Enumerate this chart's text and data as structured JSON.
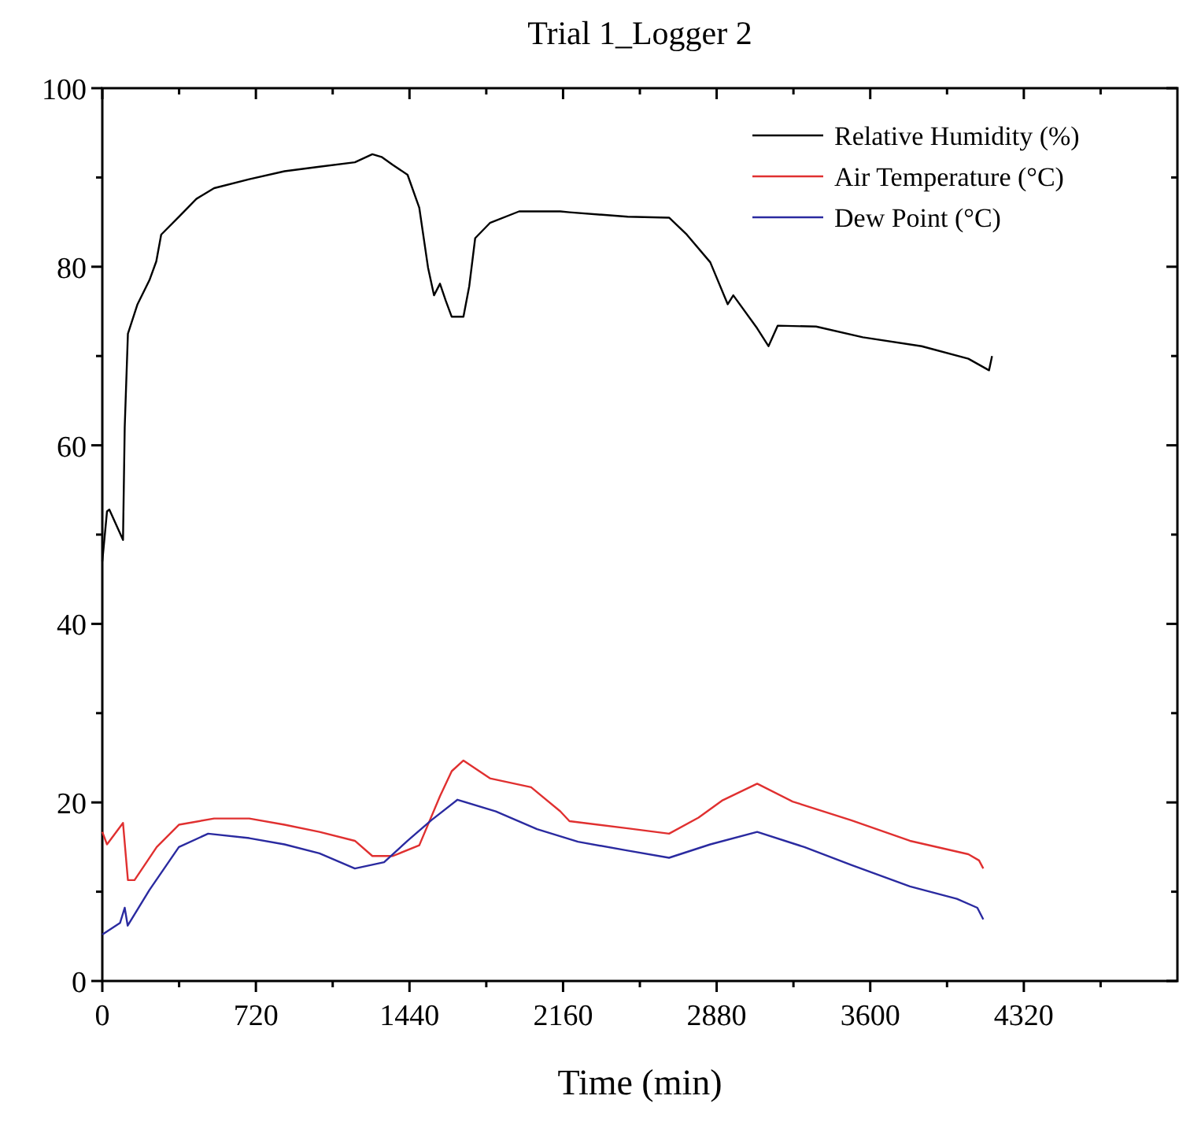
{
  "chart_data": {
    "type": "line",
    "title": "Trial 1_Logger 2",
    "xlabel": "Time (min)",
    "xlim": [
      0,
      5040
    ],
    "ylim": [
      0,
      100
    ],
    "xticks": [
      0,
      {
        "value": 360,
        "label": null
      },
      720,
      {
        "value": 1080,
        "label": null
      },
      1440,
      {
        "value": 1800,
        "label": null
      },
      2160,
      {
        "value": 2520,
        "label": null
      },
      2880,
      {
        "value": 3240,
        "label": null
      },
      3600,
      {
        "value": 3960,
        "label": null
      },
      4320,
      {
        "value": 4680,
        "label": null
      }
    ],
    "yticks": [
      0,
      {
        "value": 10,
        "label": null
      },
      20,
      {
        "value": 30,
        "label": null
      },
      40,
      {
        "value": 50,
        "label": null
      },
      60,
      {
        "value": 70,
        "label": null
      },
      80,
      {
        "value": 90,
        "label": null
      },
      100
    ],
    "grid": false,
    "legend": "top right",
    "marker": "none",
    "line_style": "solid",
    "series": [
      {
        "name": "Relative Humidity (%)",
        "color": "#000000",
        "x": [
          0,
          22,
          33,
          97,
          105,
          120,
          165,
          221,
          253,
          276,
          359,
          441,
          524,
          689,
          854,
          1018,
          1184,
          1266,
          1309,
          1362,
          1431,
          1486,
          1527,
          1555,
          1583,
          1610,
          1638,
          1693,
          1720,
          1748,
          1817,
          1954,
          2147,
          2190,
          2463,
          2657,
          2740,
          2850,
          2932,
          2958,
          3070,
          3123,
          3166,
          3346,
          3565,
          3841,
          4060,
          4157,
          4171
        ],
        "values": [
          47,
          52.6,
          52.8,
          49.4,
          62,
          72.5,
          75.8,
          78.5,
          80.6,
          83.6,
          85.6,
          87.6,
          88.8,
          89.8,
          90.7,
          91.2,
          91.7,
          92.6,
          92.3,
          91.4,
          90.3,
          86.6,
          79.9,
          76.8,
          78.1,
          76.2,
          74.4,
          74.4,
          77.8,
          83.2,
          84.9,
          86.2,
          86.2,
          86.1,
          85.6,
          85.5,
          83.6,
          80.5,
          75.8,
          76.8,
          73.1,
          71.1,
          73.4,
          73.3,
          72.1,
          71.1,
          69.7,
          68.4,
          70
        ]
      },
      {
        "name": "Air Temperature (°C)",
        "color": "#e03030",
        "x": [
          0,
          22,
          97,
          120,
          151,
          255,
          359,
          524,
          689,
          854,
          1018,
          1184,
          1266,
          1362,
          1486,
          1583,
          1638,
          1693,
          1817,
          2010,
          2147,
          2190,
          2463,
          2657,
          2795,
          2905,
          3070,
          3236,
          3511,
          3786,
          4060,
          4110,
          4130
        ],
        "values": [
          16.7,
          15.3,
          17.7,
          11.3,
          11.3,
          15,
          17.5,
          18.2,
          18.2,
          17.5,
          16.7,
          15.7,
          14,
          14,
          15.2,
          20.7,
          23.5,
          24.7,
          22.7,
          21.7,
          19,
          17.9,
          17.1,
          16.5,
          18.3,
          20.2,
          22.1,
          20.1,
          18,
          15.7,
          14.2,
          13.5,
          12.6
        ]
      },
      {
        "name": "Dew Point (°C)",
        "color": "#2a2aa0",
        "x": [
          0,
          83,
          105,
          119,
          221,
          359,
          496,
          689,
          854,
          1018,
          1184,
          1321,
          1431,
          1542,
          1665,
          1845,
          2038,
          2230,
          2463,
          2657,
          2850,
          3070,
          3291,
          3511,
          3786,
          4006,
          4102,
          4130
        ],
        "values": [
          5.2,
          6.5,
          8.2,
          6.2,
          10.2,
          15,
          16.5,
          16,
          15.3,
          14.3,
          12.6,
          13.3,
          15.7,
          18,
          20.3,
          19,
          17,
          15.6,
          14.6,
          13.8,
          15.3,
          16.7,
          15,
          13,
          10.6,
          9.2,
          8.2,
          6.9
        ]
      }
    ]
  }
}
